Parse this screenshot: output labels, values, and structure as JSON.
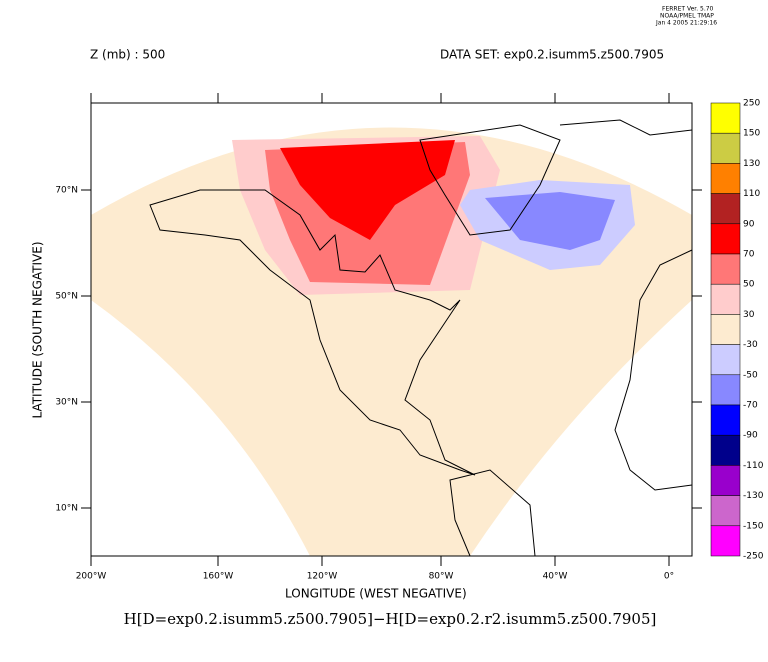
{
  "header": {
    "program": "FERRET Ver. 5.70",
    "org": "NOAA/PMEL TMAP",
    "timestamp": "Jan  4 2005 21:29:16",
    "variable": "Z (mb) : 500",
    "dataset": "DATA SET: exp0.2.isumm5.z500.7905"
  },
  "map": {
    "x_label": "LONGITUDE (WEST NEGATIVE)",
    "y_label": "LATITUDE (SOUTH NEGATIVE)",
    "x_ticks": [
      "200°W",
      "160°W",
      "120°W",
      "80°W",
      "40°W",
      "0°"
    ],
    "y_ticks": [
      "70°N",
      "50°N",
      "30°N",
      "10°N"
    ],
    "title": "H[D=exp0.2.isumm5.z500.7905]−H[D=exp0.2.r2.isumm5.z500.7905]"
  },
  "colorbar": {
    "labels": [
      "250",
      "150",
      "130",
      "110",
      "90",
      "70",
      "50",
      "30",
      "-30",
      "-50",
      "-70",
      "-90",
      "-110",
      "-130",
      "-150",
      "-250"
    ],
    "colors": [
      "#ffff00",
      "#cccc44",
      "#ff8000",
      "#b22222",
      "#ff0000",
      "#ff7777",
      "#ffcccc",
      "#fdebd0",
      "#ccccff",
      "#8888ff",
      "#0000ff",
      "#00008b",
      "#9900cc",
      "#cc66cc",
      "#ff00ff"
    ]
  }
}
